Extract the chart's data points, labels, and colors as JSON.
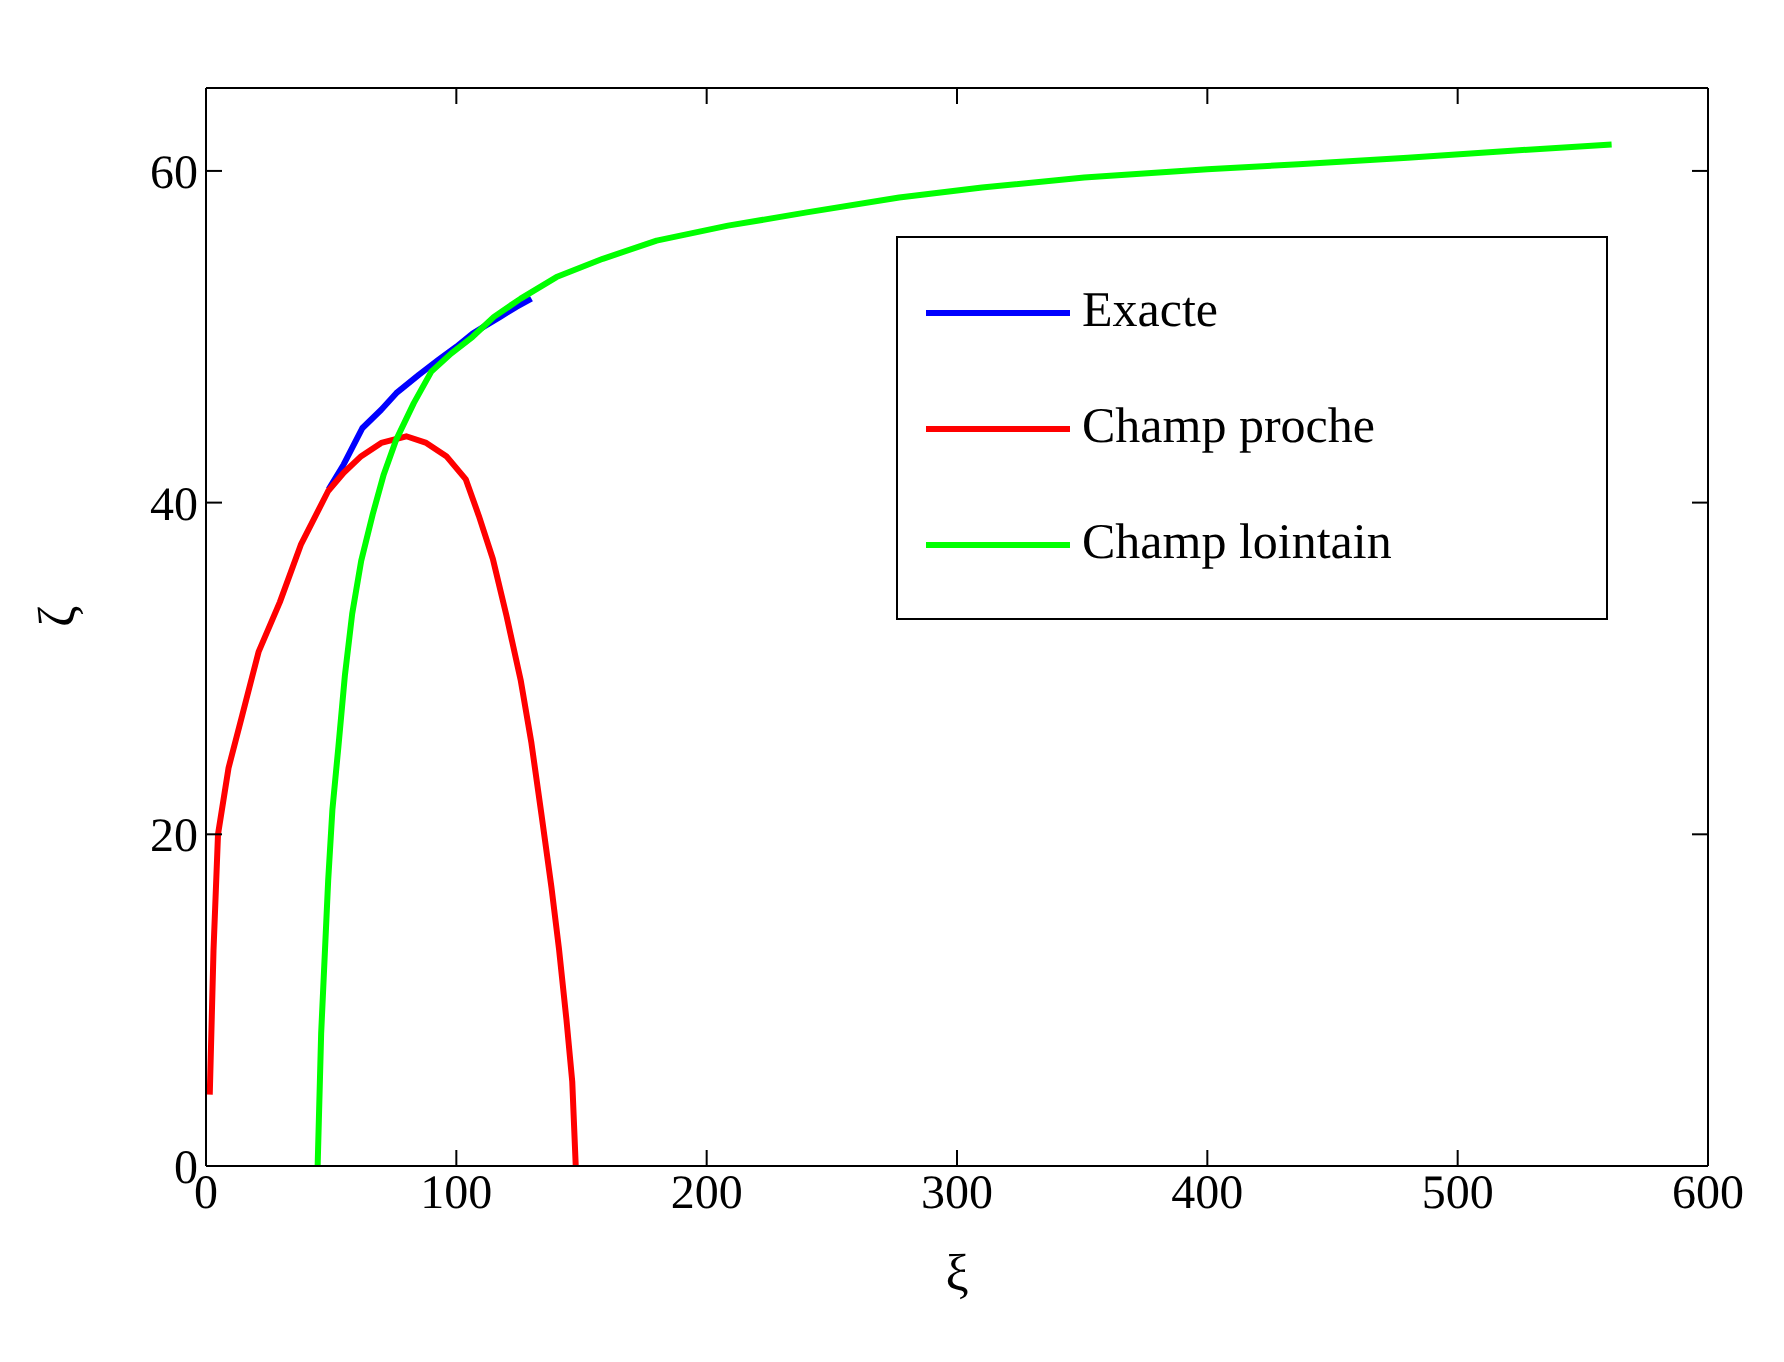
{
  "chart_data": {
    "type": "line",
    "xlabel": "ξ",
    "ylabel": "ζ",
    "xlim": [
      0,
      600
    ],
    "ylim": [
      0,
      65
    ],
    "xticks": [
      0,
      100,
      200,
      300,
      400,
      500,
      600
    ],
    "yticks": [
      0,
      20,
      40,
      60
    ],
    "legend": "top right",
    "line_style": "solid",
    "marker": "none",
    "series": [
      {
        "name": "Exacte",
        "color": "#0000ff",
        "x": [
          49,
          55,
          62.5,
          70,
          76,
          85,
          92.8,
          100,
          106.5,
          112,
          117.5,
          124,
          130
        ],
        "values": [
          40.8,
          42.3,
          44.5,
          45.6,
          46.6,
          47.7,
          48.6,
          49.4,
          50.2,
          50.7,
          51.2,
          51.8,
          52.3
        ]
      },
      {
        "name": "Champ proche",
        "color": "#ff0000",
        "x": [
          1.5,
          3,
          4.8,
          9,
          14.5,
          21,
          29.5,
          38,
          48.8,
          55,
          62,
          70,
          80,
          88,
          96,
          103.8,
          109,
          114.6,
          120,
          125.7,
          130,
          134,
          138,
          141,
          144,
          146.3,
          147.7
        ],
        "values": [
          4.3,
          13,
          20,
          24,
          27.2,
          31,
          34,
          37.5,
          40.7,
          41.8,
          42.8,
          43.6,
          44,
          43.6,
          42.8,
          41.4,
          39.2,
          36.6,
          33.2,
          29.3,
          25.5,
          21.2,
          16.8,
          13.1,
          8.8,
          5.1,
          0
        ]
      },
      {
        "name": "Champ lointain",
        "color": "#00ff00",
        "x": [
          44.6,
          46,
          48.8,
          50.5,
          52.9,
          55.5,
          58.4,
          62,
          66.6,
          71,
          76,
          83,
          90,
          98,
          106.5,
          115,
          125.7,
          140,
          158.5,
          180,
          208.5,
          240,
          276.9,
          310,
          350.8,
          400,
          436.5,
          480,
          520,
          561.5
        ],
        "values": [
          0,
          8,
          17.2,
          21.5,
          25.3,
          29.6,
          33.3,
          36.5,
          39.3,
          41.7,
          43.8,
          46,
          47.9,
          49,
          50,
          51.2,
          52.3,
          53.6,
          54.7,
          55.8,
          56.7,
          57.5,
          58.4,
          59,
          59.6,
          60.1,
          60.4,
          60.8,
          61.2,
          61.6
        ]
      }
    ]
  }
}
